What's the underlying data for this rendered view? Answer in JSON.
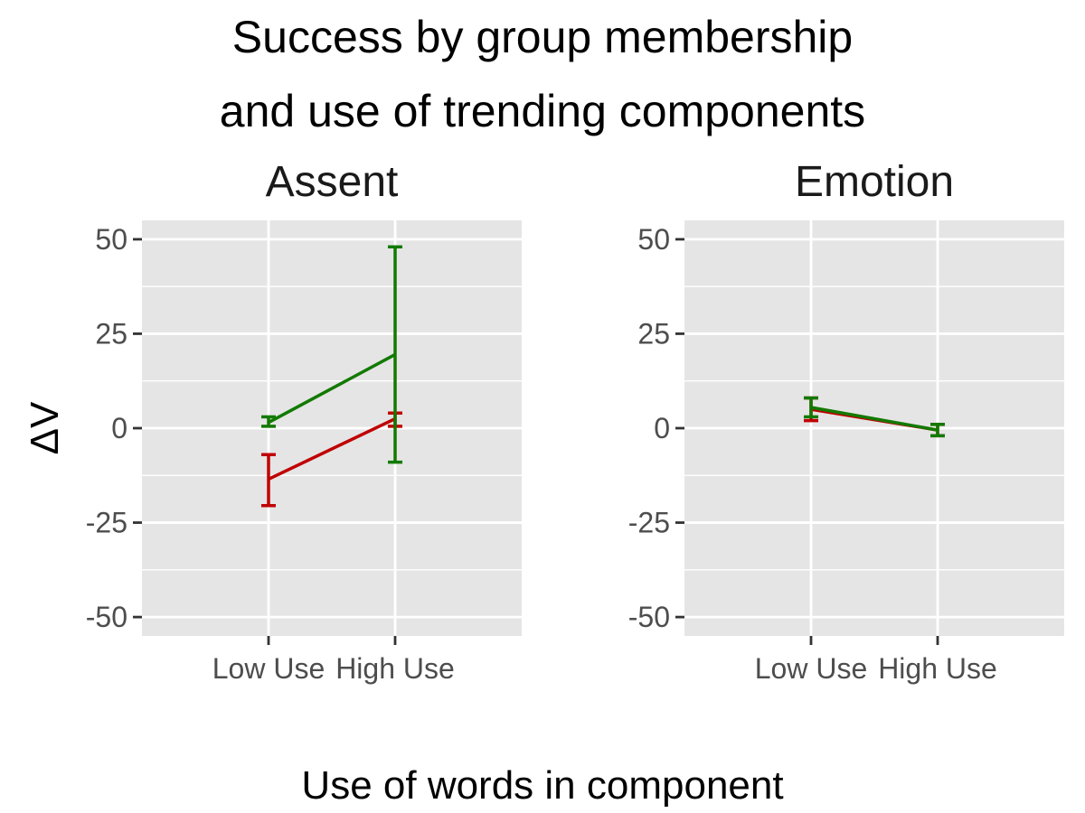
{
  "chart_data": {
    "type": "line",
    "title_lines": [
      "Success by group membership",
      "and use of trending components"
    ],
    "xlabel": "Use of words in component",
    "ylabel": "ΔV",
    "ylim": [
      -55,
      55
    ],
    "y_ticks": [
      -50,
      -25,
      0,
      25,
      50
    ],
    "categories": [
      "Low Use",
      "High Use"
    ],
    "grid": true,
    "colors": {
      "red": "#c00000",
      "green": "#127a00",
      "panel_bg": "#e5e5e5"
    },
    "panels": [
      {
        "title": "Assent",
        "series": [
          {
            "color": "#c00000",
            "values": [
              -13.5,
              2.5
            ],
            "lower": [
              -20.5,
              0.5
            ],
            "upper": [
              -7,
              4
            ]
          },
          {
            "color": "#127a00",
            "values": [
              1.5,
              19.5
            ],
            "lower": [
              0.5,
              -9
            ],
            "upper": [
              3,
              48
            ]
          }
        ]
      },
      {
        "title": "Emotion",
        "series": [
          {
            "color": "#c00000",
            "values": [
              5,
              -0.5
            ],
            "lower": [
              2,
              -2
            ],
            "upper": [
              8,
              1
            ]
          },
          {
            "color": "#127a00",
            "values": [
              5.5,
              -0.5
            ],
            "lower": [
              3,
              -2
            ],
            "upper": [
              8,
              1
            ]
          }
        ]
      }
    ]
  }
}
